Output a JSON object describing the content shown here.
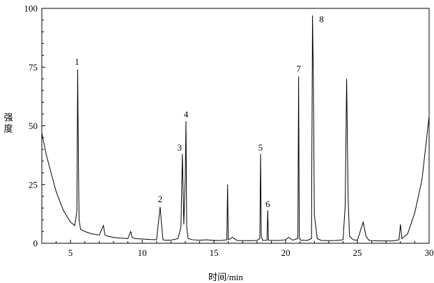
{
  "chart_data": {
    "type": "line",
    "xlabel": "时间/min",
    "ylabel": "强度",
    "xlim": [
      3,
      30
    ],
    "ylim": [
      0,
      100
    ],
    "x_ticks": [
      5,
      10,
      15,
      20,
      25,
      30
    ],
    "y_ticks": [
      0,
      25,
      50,
      75,
      100
    ],
    "grid": false,
    "series": [
      {
        "x": [
          3.0,
          3.3,
          3.6,
          4.0,
          4.5,
          5.0,
          5.3,
          5.45,
          5.5,
          5.55,
          5.6,
          5.7,
          6.0,
          6.5,
          7.0,
          7.3,
          7.4,
          7.6,
          8.0,
          8.5,
          9.0,
          9.2,
          9.3,
          9.5,
          10.0,
          10.5,
          11.0,
          11.25,
          11.35,
          11.45,
          11.6,
          12.0,
          12.5,
          12.7,
          12.8,
          12.9,
          13.0,
          13.05,
          13.1,
          13.2,
          13.5,
          14.0,
          14.5,
          15.0,
          15.5,
          15.9,
          15.95,
          16.0,
          16.3,
          16.6,
          17.0,
          17.5,
          18.0,
          18.2,
          18.25,
          18.3,
          18.4,
          18.7,
          18.75,
          18.8,
          19.0,
          19.5,
          20.0,
          20.2,
          20.5,
          20.85,
          20.9,
          20.95,
          21.0,
          21.1,
          21.5,
          21.8,
          21.87,
          21.93,
          22.0,
          22.2,
          22.5,
          23.0,
          23.5,
          24.0,
          24.15,
          24.25,
          24.35,
          24.45,
          24.7,
          25.0,
          25.4,
          25.6,
          25.8,
          26.0,
          26.5,
          27.0,
          27.5,
          27.9,
          28.0,
          28.1,
          28.5,
          29.0,
          29.5,
          30.0
        ],
        "values": [
          47,
          38,
          31,
          22,
          14,
          9,
          7.5,
          14,
          74,
          36,
          10,
          6,
          5,
          4,
          3.5,
          7.5,
          3.5,
          3,
          2.5,
          2.2,
          2,
          5,
          2.5,
          2,
          1.8,
          1.6,
          1.5,
          15.5,
          8,
          1.5,
          1.3,
          1.3,
          2,
          7,
          38,
          8,
          28,
          52,
          7,
          2,
          1.5,
          1.3,
          1.5,
          1.2,
          1.2,
          1.5,
          25,
          1.5,
          2.5,
          1.2,
          1.1,
          1.1,
          1.2,
          2,
          38,
          3,
          1.2,
          1.3,
          14,
          1.3,
          1.2,
          1.2,
          1.5,
          2.5,
          1.3,
          2,
          71,
          3,
          1.5,
          1.3,
          1.2,
          2,
          97,
          70,
          12,
          2,
          1.2,
          1.1,
          1.2,
          1.5,
          16,
          70,
          20,
          3,
          1.5,
          1.3,
          9,
          3,
          1.3,
          1.1,
          1,
          1,
          1,
          1.5,
          8,
          2,
          4,
          13,
          27,
          54
        ]
      }
    ],
    "annotations": [
      {
        "text": "1",
        "x": 5.45,
        "y": 76
      },
      {
        "text": "2",
        "x": 11.25,
        "y": 17.5
      },
      {
        "text": "3",
        "x": 12.6,
        "y": 39.5
      },
      {
        "text": "4",
        "x": 13.05,
        "y": 53.5
      },
      {
        "text": "5",
        "x": 18.25,
        "y": 39.5
      },
      {
        "text": "6",
        "x": 18.75,
        "y": 15.5
      },
      {
        "text": "7",
        "x": 20.9,
        "y": 73
      },
      {
        "text": "8",
        "x": 22.5,
        "y": 94
      }
    ]
  }
}
